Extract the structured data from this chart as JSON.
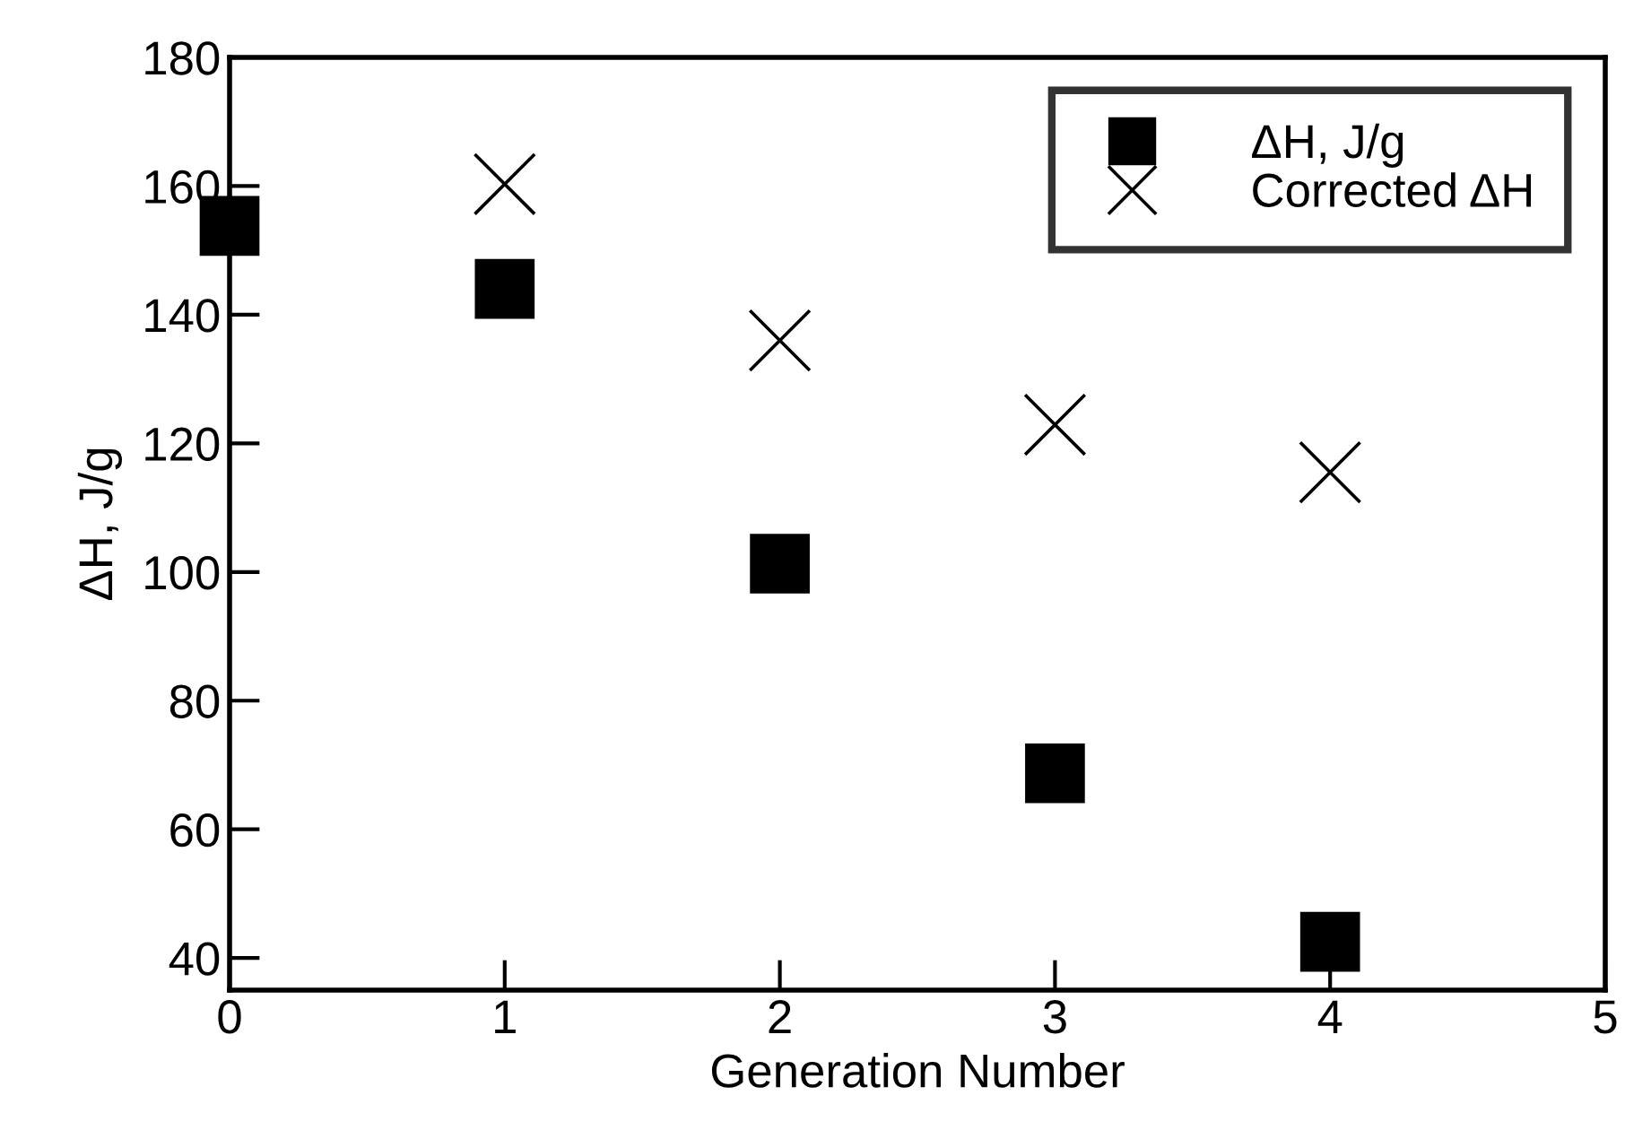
{
  "chart_data": {
    "type": "scatter",
    "xlabel": "Generation Number",
    "ylabel": "ΔH, J/g",
    "x": [
      0,
      1,
      2,
      3,
      4
    ],
    "series": [
      {
        "name": "ΔH, J/g",
        "color": "#000000",
        "marker": "square",
        "values": [
          153.8,
          144.0,
          101.3,
          68.7,
          42.5
        ]
      },
      {
        "name": "Corrected ΔH",
        "color": "#000000",
        "marker": "cross",
        "x": [
          1,
          2,
          3,
          4
        ],
        "values": [
          160.3,
          136.0,
          122.9,
          115.5
        ]
      }
    ],
    "xlim": [
      0,
      5
    ],
    "xticks": [
      0,
      1,
      2,
      3,
      4,
      5
    ],
    "ylim": [
      35,
      180
    ],
    "yticks": [
      40,
      60,
      80,
      100,
      120,
      140,
      160,
      180
    ],
    "grid": false,
    "legend": "top right"
  }
}
